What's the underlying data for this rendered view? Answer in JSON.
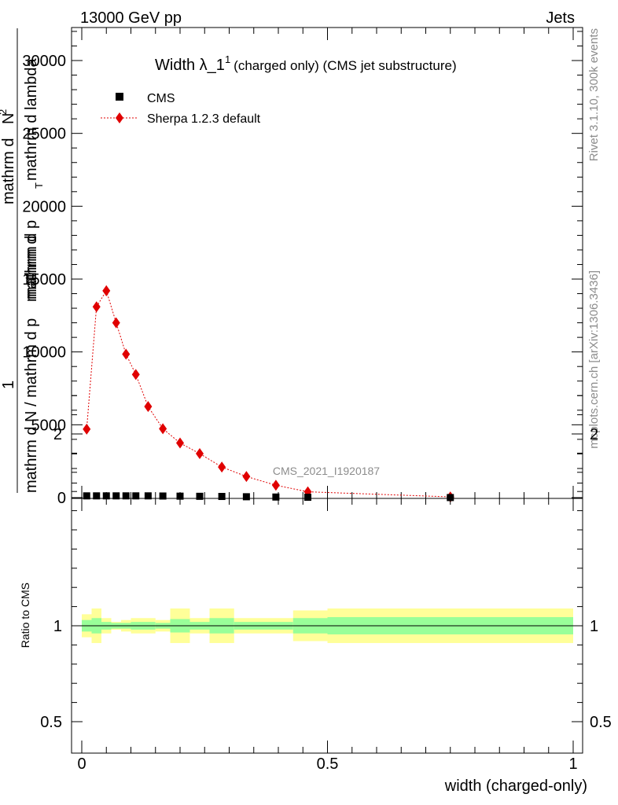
{
  "header": {
    "left": "13000 GeV pp",
    "right": "Jets",
    "side_top": "Rivet 3.1.10,  300k events",
    "side_bottom": "mcplots.cern.ch [arXiv:1306.3436]"
  },
  "chart_data": [
    {
      "type": "scatter",
      "title": "Width λ_1",
      "title_sup": "1",
      "subtitle": "(charged only) (CMS jet substructure)",
      "watermark": "CMS_2021_I1920187",
      "ylabel_lines": [
        "mathrm d²N",
        "mathrm d p_T mathrm d lambda",
        "1",
        "mathrm d N / mathrm d p_T"
      ],
      "ylabel_display": [
        "mathrm d N / mathrm d p",
        "mathrm d",
        "1",
        "mathrm d",
        "N",
        "mathrm d p",
        "T",
        "mathrm d lambda"
      ],
      "ylabel_sub": "T",
      "ylabel_sup": "2",
      "ylim": [
        0,
        32500
      ],
      "yticks": [
        0,
        5000,
        10000,
        15000,
        20000,
        25000,
        30000
      ],
      "ytick_labels": [
        "0",
        "5000",
        "10000",
        "15000",
        "20000",
        "25000",
        "30000"
      ],
      "xlim": [
        -0.02,
        1.0
      ],
      "grid": false,
      "legend_position": "top-left",
      "series": [
        {
          "name": "CMS",
          "color": "#000000",
          "marker": "square",
          "x": [
            0.01,
            0.03,
            0.05,
            0.07,
            0.09,
            0.11,
            0.135,
            0.165,
            0.2,
            0.24,
            0.285,
            0.335,
            0.395,
            0.46,
            0.75
          ],
          "y": [
            120,
            120,
            120,
            120,
            120,
            120,
            120,
            110,
            100,
            90,
            80,
            60,
            40,
            25,
            5
          ]
        },
        {
          "name": "Sherpa 1.2.3 default",
          "color": "#e00000",
          "marker": "diamond",
          "line": "dotted",
          "x": [
            0.01,
            0.03,
            0.05,
            0.07,
            0.09,
            0.11,
            0.135,
            0.165,
            0.2,
            0.24,
            0.285,
            0.335,
            0.395,
            0.46,
            0.75
          ],
          "y": [
            4700,
            13100,
            14200,
            12000,
            9850,
            8450,
            6250,
            4730,
            3750,
            3020,
            2100,
            1450,
            850,
            400,
            50
          ],
          "err": [
            100,
            300,
            350,
            250,
            200,
            180,
            140,
            110,
            90,
            80,
            60,
            50,
            40,
            30,
            10
          ]
        }
      ]
    },
    {
      "type": "area",
      "ylabel": "Ratio to CMS",
      "xlabel": "width (charged-only)",
      "ylim": [
        0.4,
        2.3
      ],
      "yticks": [
        0.5,
        1,
        2
      ],
      "ytick_labels": [
        "0.5",
        "1",
        "2"
      ],
      "xlim": [
        -0.02,
        1.0
      ],
      "xticks": [
        0,
        0.5,
        1
      ],
      "xtick_labels": [
        "0",
        "0.5",
        "1"
      ],
      "bins": [
        0.0,
        0.02,
        0.04,
        0.06,
        0.08,
        0.1,
        0.12,
        0.15,
        0.18,
        0.22,
        0.26,
        0.31,
        0.36,
        0.43,
        0.5,
        1.0
      ],
      "band_yellow_half": [
        0.06,
        0.09,
        0.04,
        0.02,
        0.03,
        0.04,
        0.04,
        0.03,
        0.09,
        0.04,
        0.09,
        0.04,
        0.04,
        0.08,
        0.09
      ],
      "band_green_half": [
        0.03,
        0.04,
        0.02,
        0.015,
        0.015,
        0.02,
        0.02,
        0.015,
        0.035,
        0.02,
        0.04,
        0.02,
        0.02,
        0.04,
        0.045
      ],
      "reference": 1.0,
      "colors": {
        "yellow": "#ffff99",
        "green": "#99ff99",
        "line": "#000000"
      }
    }
  ]
}
